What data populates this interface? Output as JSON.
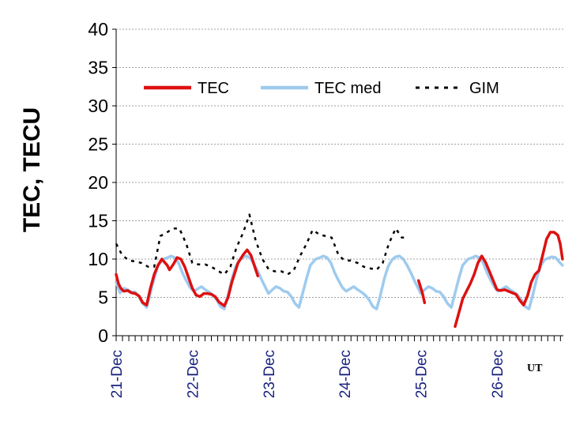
{
  "chart_data": {
    "type": "line",
    "title": "",
    "ylabel": "TEC, TECU",
    "xlabel": "",
    "x_unit_label": "UT",
    "ylim": [
      0,
      40
    ],
    "y_ticks": [
      0,
      5,
      10,
      15,
      20,
      25,
      30,
      35,
      40
    ],
    "xlim": [
      0,
      6
    ],
    "x_ticks": [
      {
        "x": 0,
        "label": "21-Dec"
      },
      {
        "x": 1,
        "label": "22-Dec"
      },
      {
        "x": 2,
        "label": "23-Dec"
      },
      {
        "x": 3,
        "label": "24-Dec"
      },
      {
        "x": 4,
        "label": "25-Dec"
      },
      {
        "x": 5,
        "label": "26-Dec"
      }
    ],
    "x_note": "x = days elapsed since 21-Dec 00 UT",
    "grid": true,
    "legend_position": "top",
    "series": [
      {
        "name": "TEC",
        "color": "#dd1111",
        "style": "solid",
        "segments": [
          [
            [
              0,
              8.0
            ],
            [
              0.03,
              6.8
            ],
            [
              0.06,
              6.2
            ],
            [
              0.1,
              5.8
            ],
            [
              0.15,
              5.9
            ],
            [
              0.2,
              5.6
            ],
            [
              0.25,
              5.5
            ],
            [
              0.3,
              5.2
            ],
            [
              0.35,
              4.3
            ],
            [
              0.4,
              4.0
            ],
            [
              0.45,
              6.2
            ],
            [
              0.5,
              8.0
            ],
            [
              0.55,
              9.2
            ],
            [
              0.6,
              10.0
            ],
            [
              0.67,
              9.2
            ],
            [
              0.7,
              8.6
            ],
            [
              0.75,
              9.3
            ],
            [
              0.8,
              10.2
            ],
            [
              0.85,
              10.0
            ],
            [
              0.9,
              9.0
            ],
            [
              0.95,
              7.6
            ],
            [
              1.0,
              6.2
            ],
            [
              1.05,
              5.3
            ],
            [
              1.1,
              5.1
            ],
            [
              1.15,
              5.5
            ],
            [
              1.2,
              5.5
            ],
            [
              1.25,
              5.4
            ],
            [
              1.3,
              5.1
            ],
            [
              1.35,
              4.4
            ],
            [
              1.42,
              3.9
            ],
            [
              1.47,
              5.0
            ],
            [
              1.52,
              7.0
            ],
            [
              1.6,
              9.5
            ],
            [
              1.67,
              10.6
            ],
            [
              1.72,
              11.2
            ],
            [
              1.77,
              10.5
            ],
            [
              1.82,
              9.0
            ],
            [
              1.86,
              7.8
            ]
          ],
          [
            [
              3.97,
              7.2
            ],
            [
              4.02,
              5.6
            ],
            [
              4.05,
              4.3
            ]
          ],
          [
            [
              4.45,
              1.2
            ],
            [
              4.5,
              3.0
            ],
            [
              4.55,
              4.8
            ],
            [
              4.6,
              5.8
            ],
            [
              4.65,
              6.8
            ],
            [
              4.7,
              8.0
            ],
            [
              4.75,
              9.5
            ],
            [
              4.8,
              10.4
            ],
            [
              4.85,
              9.6
            ],
            [
              4.9,
              8.4
            ],
            [
              4.95,
              7.2
            ],
            [
              5.0,
              6.0
            ],
            [
              5.05,
              5.9
            ],
            [
              5.1,
              6.0
            ],
            [
              5.15,
              5.8
            ],
            [
              5.2,
              5.6
            ],
            [
              5.25,
              5.4
            ],
            [
              5.3,
              4.6
            ],
            [
              5.35,
              4.0
            ],
            [
              5.4,
              5.2
            ],
            [
              5.45,
              7.0
            ],
            [
              5.5,
              8.0
            ],
            [
              5.55,
              8.5
            ],
            [
              5.6,
              10.5
            ],
            [
              5.65,
              12.6
            ],
            [
              5.7,
              13.5
            ],
            [
              5.75,
              13.5
            ],
            [
              5.8,
              13.1
            ],
            [
              5.83,
              12.0
            ],
            [
              5.86,
              10.0
            ]
          ]
        ]
      },
      {
        "name": "TEC med",
        "color": "#9ecbee",
        "style": "solid",
        "segments": [
          [
            [
              0,
              7.0
            ],
            [
              0.05,
              5.6
            ],
            [
              0.1,
              6.2
            ],
            [
              0.15,
              6.0
            ],
            [
              0.2,
              5.7
            ],
            [
              0.25,
              5.7
            ],
            [
              0.3,
              5.1
            ],
            [
              0.35,
              4.2
            ],
            [
              0.4,
              3.7
            ],
            [
              0.45,
              5.6
            ],
            [
              0.5,
              7.5
            ],
            [
              0.55,
              9.2
            ],
            [
              0.62,
              10.0
            ],
            [
              0.68,
              10.2
            ],
            [
              0.72,
              10.4
            ],
            [
              0.77,
              10.2
            ],
            [
              0.82,
              9.5
            ],
            [
              0.87,
              8.2
            ],
            [
              0.92,
              7.2
            ],
            [
              0.97,
              6.3
            ],
            [
              1.02,
              5.8
            ],
            [
              1.07,
              6.1
            ],
            [
              1.12,
              6.4
            ],
            [
              1.17,
              6.0
            ],
            [
              1.22,
              5.7
            ],
            [
              1.27,
              5.3
            ],
            [
              1.32,
              4.7
            ],
            [
              1.37,
              3.8
            ],
            [
              1.42,
              3.5
            ],
            [
              1.47,
              5.3
            ],
            [
              1.52,
              7.4
            ],
            [
              1.57,
              9.0
            ],
            [
              1.62,
              9.9
            ],
            [
              1.67,
              10.3
            ],
            [
              1.72,
              10.4
            ],
            [
              1.77,
              10.0
            ],
            [
              1.82,
              9.2
            ],
            [
              1.87,
              8.2
            ],
            [
              1.92,
              7.1
            ],
            [
              1.97,
              6.1
            ],
            [
              2.0,
              5.5
            ],
            [
              2.05,
              6.0
            ],
            [
              2.1,
              6.4
            ],
            [
              2.15,
              6.2
            ],
            [
              2.2,
              5.8
            ],
            [
              2.25,
              5.7
            ],
            [
              2.3,
              5.1
            ],
            [
              2.35,
              4.2
            ],
            [
              2.4,
              3.7
            ],
            [
              2.45,
              5.6
            ],
            [
              2.5,
              7.5
            ],
            [
              2.55,
              9.2
            ],
            [
              2.62,
              10.0
            ],
            [
              2.68,
              10.2
            ],
            [
              2.72,
              10.4
            ],
            [
              2.77,
              10.2
            ],
            [
              2.82,
              9.5
            ],
            [
              2.87,
              8.2
            ],
            [
              2.92,
              7.2
            ],
            [
              2.97,
              6.3
            ],
            [
              3.02,
              5.8
            ],
            [
              3.07,
              6.1
            ],
            [
              3.12,
              6.4
            ],
            [
              3.17,
              6.0
            ],
            [
              3.22,
              5.7
            ],
            [
              3.27,
              5.3
            ],
            [
              3.32,
              4.7
            ],
            [
              3.37,
              3.8
            ],
            [
              3.42,
              3.5
            ],
            [
              3.47,
              5.3
            ],
            [
              3.52,
              7.4
            ],
            [
              3.57,
              9.0
            ],
            [
              3.62,
              9.9
            ],
            [
              3.67,
              10.3
            ],
            [
              3.72,
              10.4
            ],
            [
              3.77,
              10.0
            ],
            [
              3.82,
              9.2
            ],
            [
              3.87,
              8.2
            ],
            [
              3.92,
              7.1
            ],
            [
              3.97,
              6.1
            ],
            [
              4.0,
              5.5
            ],
            [
              4.05,
              6.0
            ],
            [
              4.1,
              6.4
            ],
            [
              4.15,
              6.2
            ],
            [
              4.2,
              5.8
            ],
            [
              4.25,
              5.7
            ],
            [
              4.3,
              5.1
            ],
            [
              4.35,
              4.2
            ],
            [
              4.4,
              3.7
            ],
            [
              4.45,
              5.6
            ],
            [
              4.5,
              7.5
            ],
            [
              4.55,
              9.2
            ],
            [
              4.62,
              10.0
            ],
            [
              4.68,
              10.2
            ],
            [
              4.72,
              10.4
            ],
            [
              4.77,
              10.2
            ],
            [
              4.82,
              9.5
            ],
            [
              4.87,
              8.2
            ],
            [
              4.92,
              7.2
            ],
            [
              4.97,
              6.3
            ],
            [
              5.02,
              5.8
            ],
            [
              5.07,
              6.1
            ],
            [
              5.12,
              6.4
            ],
            [
              5.17,
              6.0
            ],
            [
              5.22,
              5.7
            ],
            [
              5.27,
              5.3
            ],
            [
              5.32,
              4.7
            ],
            [
              5.37,
              3.8
            ],
            [
              5.42,
              3.5
            ],
            [
              5.47,
              5.3
            ],
            [
              5.52,
              7.4
            ],
            [
              5.57,
              9.0
            ],
            [
              5.62,
              9.9
            ],
            [
              5.67,
              10.1
            ],
            [
              5.72,
              10.3
            ],
            [
              5.77,
              10.2
            ],
            [
              5.82,
              9.6
            ],
            [
              5.86,
              9.2
            ]
          ]
        ]
      },
      {
        "name": "GIM",
        "color": "#000000",
        "style": "dotted",
        "segments": [
          [
            [
              0,
              12.0
            ],
            [
              0.08,
              10.5
            ],
            [
              0.17,
              9.8
            ],
            [
              0.25,
              9.7
            ],
            [
              0.33,
              9.5
            ],
            [
              0.42,
              9.0
            ],
            [
              0.5,
              9.0
            ],
            [
              0.58,
              13.0
            ],
            [
              0.67,
              13.5
            ],
            [
              0.75,
              14.0
            ],
            [
              0.83,
              14.0
            ],
            [
              0.92,
              12.0
            ],
            [
              1.0,
              9.5
            ],
            [
              1.08,
              9.3
            ],
            [
              1.17,
              9.3
            ],
            [
              1.25,
              9.0
            ],
            [
              1.33,
              8.5
            ],
            [
              1.42,
              8.0
            ],
            [
              1.5,
              9.0
            ],
            [
              1.58,
              11.5
            ],
            [
              1.67,
              13.5
            ],
            [
              1.75,
              15.8
            ],
            [
              1.83,
              12.5
            ],
            [
              1.92,
              10.0
            ],
            [
              2.0,
              8.7
            ],
            [
              2.08,
              8.4
            ],
            [
              2.17,
              8.4
            ],
            [
              2.25,
              8.0
            ],
            [
              2.33,
              8.5
            ],
            [
              2.42,
              10.5
            ],
            [
              2.5,
              12.0
            ],
            [
              2.58,
              13.8
            ],
            [
              2.67,
              13.2
            ],
            [
              2.75,
              13.0
            ],
            [
              2.83,
              12.8
            ],
            [
              2.92,
              10.5
            ],
            [
              3.0,
              9.8
            ],
            [
              3.08,
              9.8
            ],
            [
              3.17,
              9.5
            ],
            [
              3.25,
              9.0
            ],
            [
              3.33,
              8.8
            ],
            [
              3.42,
              8.6
            ],
            [
              3.5,
              9.5
            ],
            [
              3.58,
              12.0
            ],
            [
              3.67,
              14.0
            ],
            [
              3.75,
              12.8
            ],
            [
              3.8,
              12.8
            ]
          ]
        ]
      }
    ]
  }
}
